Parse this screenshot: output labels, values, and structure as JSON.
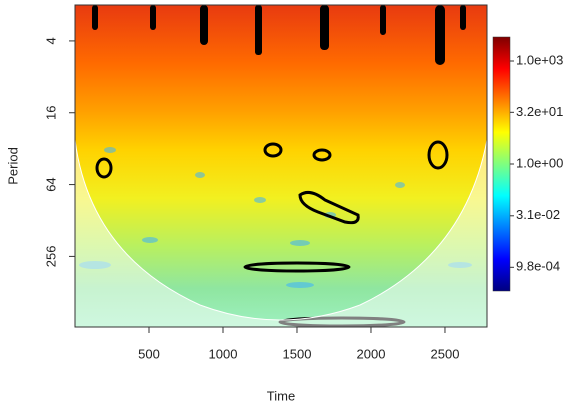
{
  "chart_data": {
    "type": "heatmap",
    "x_label": "Time",
    "y_label": "Period",
    "xlim": [
      0,
      2784
    ],
    "xticks": [
      500,
      1000,
      1500,
      2000,
      2500
    ],
    "ylim": [
      2,
      1000
    ],
    "yticks": [
      4,
      16,
      64,
      256
    ],
    "y_log": true,
    "y_reversed": true,
    "colorbar": {
      "lim": [
        0.0002,
        5000
      ],
      "log": true,
      "ticks": [
        {
          "value": 1000,
          "label": "1.0e+03"
        },
        {
          "value": 32,
          "label": "3.2e+01"
        },
        {
          "value": 1,
          "label": "1.0e+00"
        },
        {
          "value": 0.031,
          "label": "3.1e-02"
        },
        {
          "value": 0.00098,
          "label": "9.8e-04"
        }
      ],
      "colors": [
        "#00007f",
        "#0000ff",
        "#007fff",
        "#00ffff",
        "#7fff7f",
        "#ffff00",
        "#ff7f00",
        "#ff0000",
        "#7f0000"
      ]
    }
  }
}
